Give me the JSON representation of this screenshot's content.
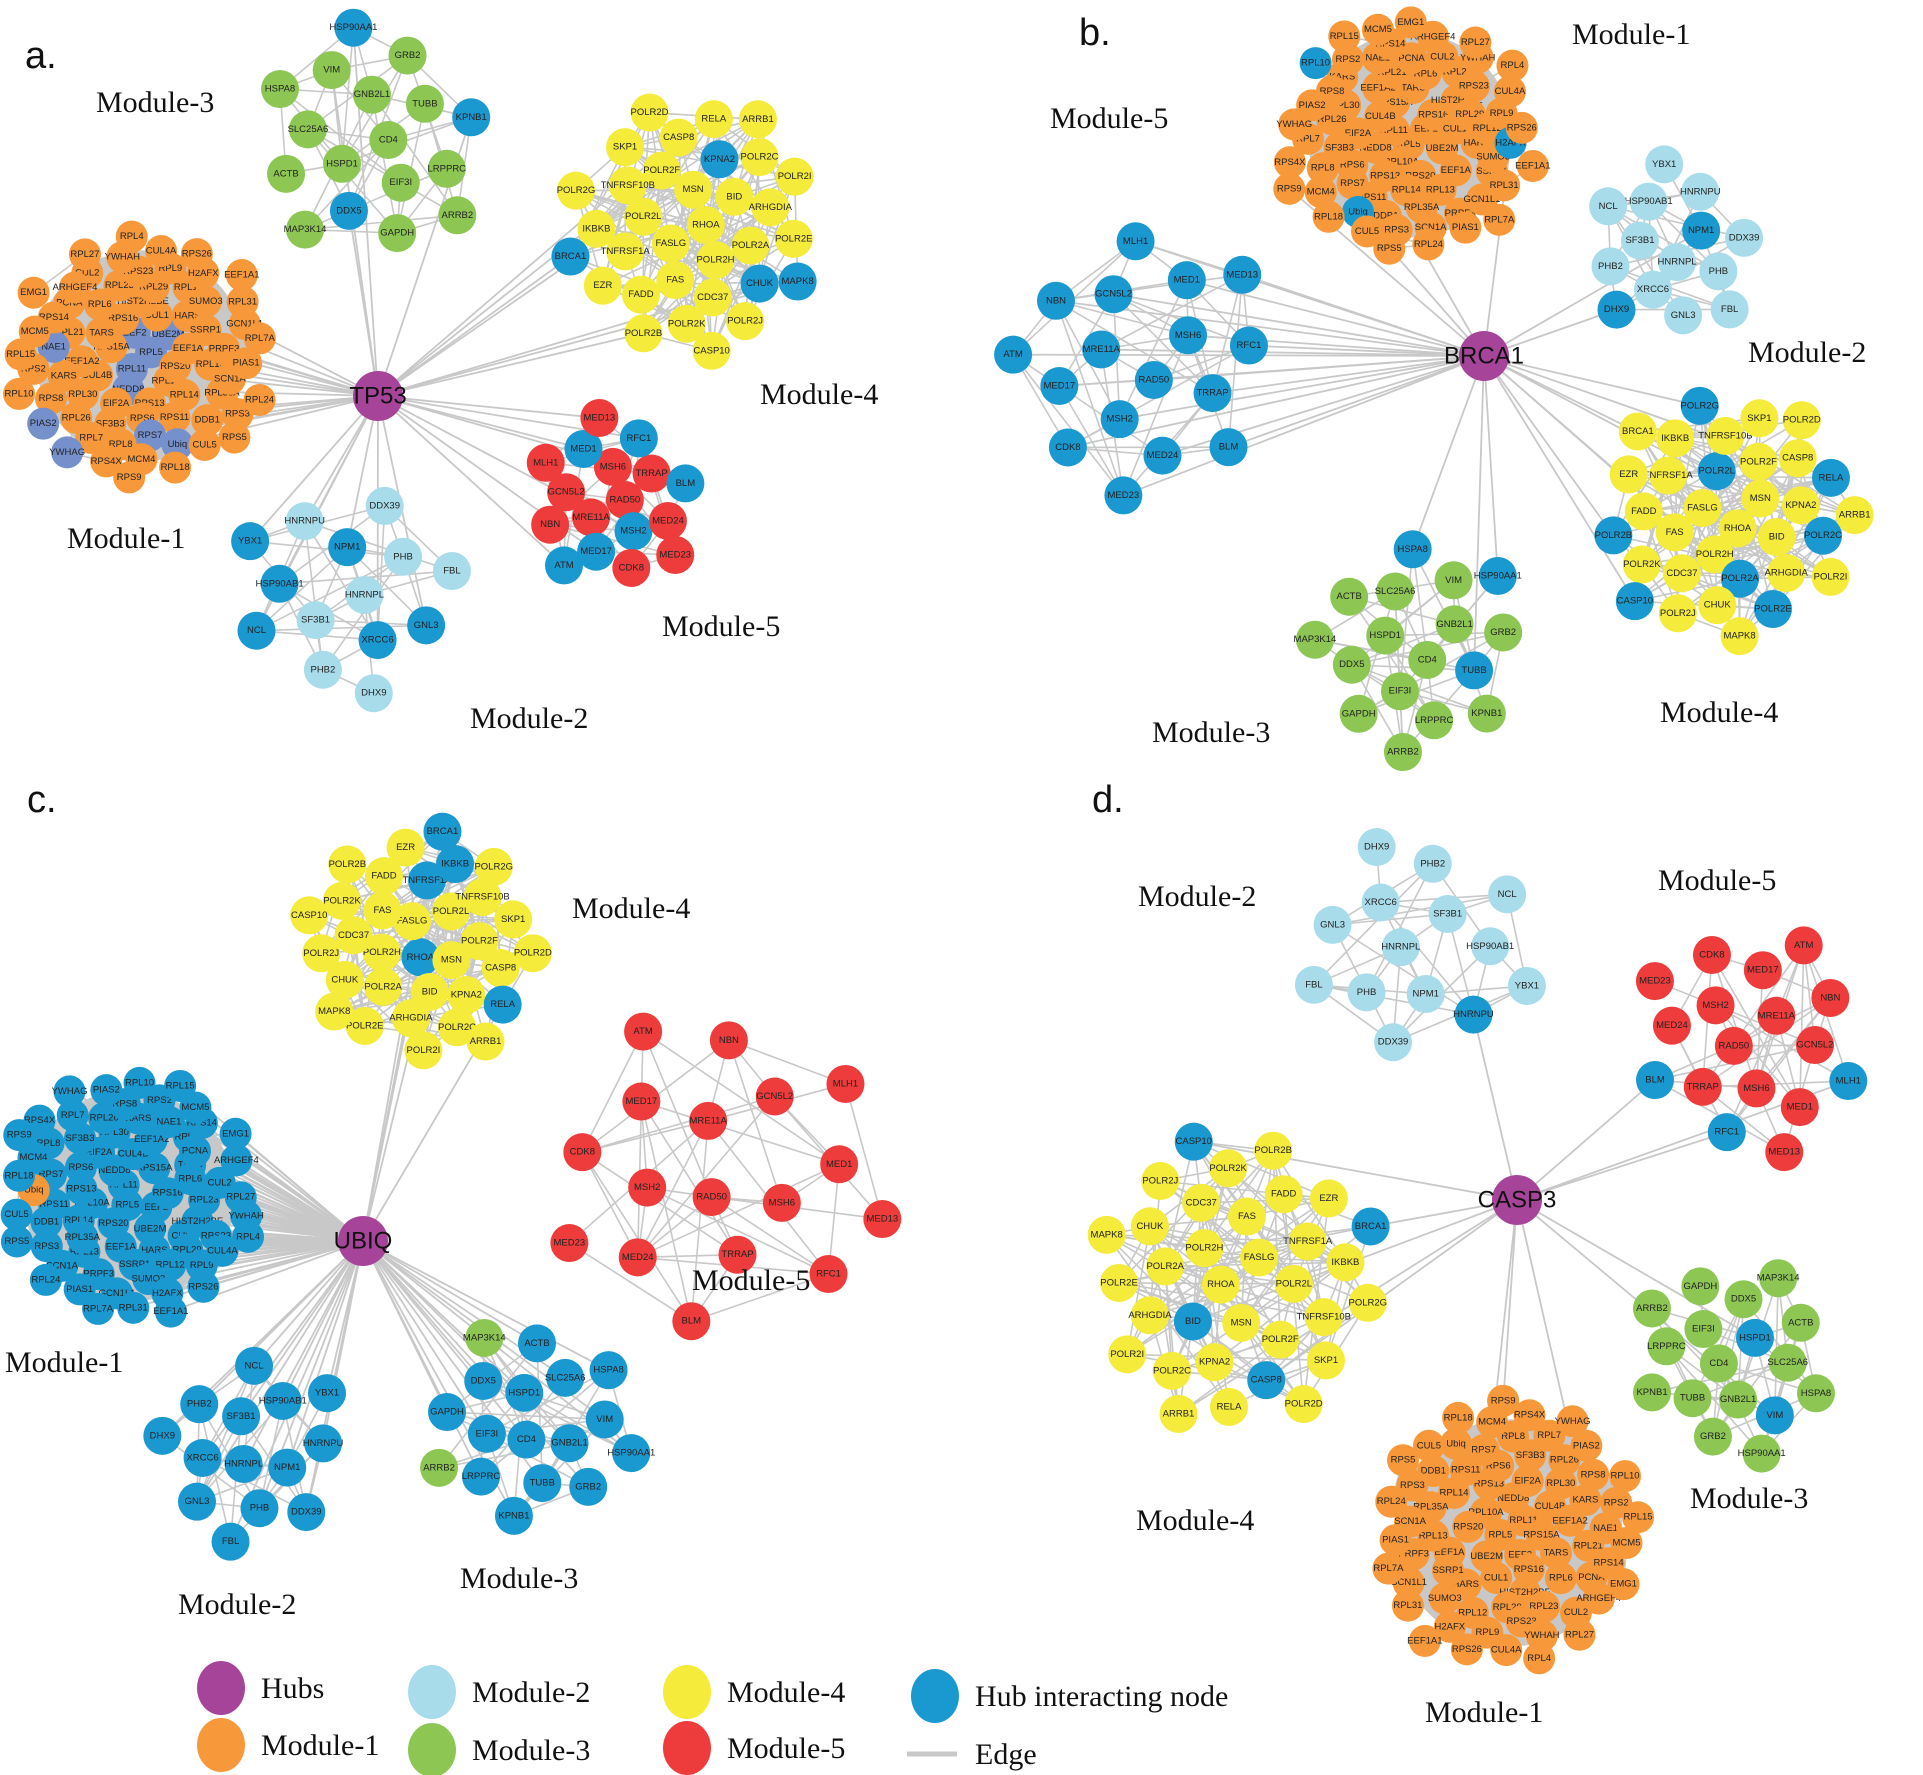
{
  "colors": {
    "hub": "#a6449a",
    "m1": "#f7993a",
    "m2": "#a9dcea",
    "m3": "#8dc653",
    "m4": "#f4eb3a",
    "m5": "#ee3b3b",
    "hub_interacting": "#1a98d0",
    "hub_interacting_alt": "#7690cc",
    "edge": "#c8c8c8"
  },
  "modules": {
    "m1": {
      "label": "Module-1",
      "nodes": [
        "RPL5",
        "RPL11",
        "EEF2",
        "RPL10A",
        "RPS15A",
        "UBE2M",
        "NEDD8",
        "RPS16",
        "RPS20",
        "CUL4B",
        "CUL1",
        "RPS13",
        "TARS",
        "EEF1A",
        "EIF2A",
        "HIST2H2BE",
        "RPL14",
        "EEF1A2",
        "HARS",
        "RPS6",
        "RPL6",
        "RPL13",
        "RPL30",
        "RPL29",
        "RPS11",
        "RPL21",
        "SSRP1",
        "SF3B3",
        "RPL23",
        "RPL35A",
        "KARS",
        "RPL12",
        "RPS7",
        "PCNA",
        "PRPF3",
        "RPL26",
        "RPS23",
        "DDB1",
        "NAE1",
        "SUMO3",
        "RPL8",
        "CUL2",
        "SCN1A",
        "RPS8",
        "RPL9",
        "Ubiq",
        "RPS14",
        "GCN1L1",
        "RPL7",
        "YWHAH",
        "RPS3",
        "RPS2",
        "H2AFX",
        "MCM4",
        "ARHGEF4",
        "PIAS1",
        "PIAS2",
        "CUL4A",
        "CUL5",
        "MCM5",
        "RPL31",
        "RPS4X",
        "RPL27",
        "RPL24",
        "RPL10",
        "RPS26",
        "RPL18",
        "EMG1",
        "RPL7A",
        "YWHAG",
        "RPL4",
        "RPS5",
        "RPL15",
        "EEF1A1",
        "RPS9"
      ]
    },
    "m2": {
      "label": "Module-2",
      "nodes": [
        "HNRNPL",
        "SF3B1",
        "NPM1",
        "XRCC6",
        "HSP90AB1",
        "PHB",
        "PHB2",
        "HNRNPU",
        "GNL3",
        "NCL",
        "DDX39",
        "DHX9",
        "YBX1",
        "FBL"
      ]
    },
    "m3": {
      "label": "Module-3",
      "nodes": [
        "CD4",
        "HSPD1",
        "GNB2L1",
        "EIF3I",
        "SLC25A6",
        "TUBB",
        "DDX5",
        "VIM",
        "LRPPRC",
        "ACTB",
        "GRB2",
        "GAPDH",
        "HSPA8",
        "KPNB1",
        "MAP3K14",
        "HSP90AA1",
        "ARRB2"
      ]
    },
    "m4": {
      "label": "Module-4",
      "nodes": [
        "RHOA",
        "FASLG",
        "MSN",
        "POLR2H",
        "POLR2L",
        "BID",
        "FAS",
        "POLR2F",
        "POLR2A",
        "TNFRSF1A",
        "KPNA2",
        "CDC37",
        "TNFRSF10B",
        "ARHGDIA",
        "FADD",
        "CASP8",
        "CHUK",
        "IKBKB",
        "POLR2C",
        "POLR2K",
        "SKP1",
        "POLR2E",
        "EZR",
        "RELA",
        "POLR2J",
        "POLR2G",
        "POLR2I",
        "POLR2B",
        "POLR2D",
        "MAPK8",
        "BRCA1",
        "ARRB1",
        "CASP10"
      ]
    },
    "m5": {
      "label": "Module-5",
      "nodes": [
        "RAD50",
        "MRE11A",
        "MSH6",
        "MSH2",
        "GCN5L2",
        "TRRAP",
        "MED17",
        "MED1",
        "MED24",
        "NBN",
        "RFC1",
        "CDK8",
        "MLH1",
        "BLM",
        "ATM",
        "MED13",
        "MED23"
      ]
    }
  },
  "panels": [
    {
      "letter": "a.",
      "hub": "TP53",
      "hub_interacting": {
        "m1": {
          "alt_color": true,
          "nodes": [
            "RPL5",
            "RPL11",
            "EEF2",
            "UBE2M",
            "NEDD8",
            "RPS7",
            "NAE1",
            "Ubiq",
            "YWHAG",
            "PIAS2"
          ]
        },
        "m2": {
          "nodes": [
            "XRCC6",
            "NPM1",
            "HSP90AB1",
            "GNL3",
            "NCL",
            "YBX1"
          ]
        },
        "m3": {
          "nodes": [
            "DDX5",
            "KPNB1",
            "HSP90AA1"
          ]
        },
        "m4": {
          "nodes": [
            "KPNA2",
            "CHUK",
            "MAPK8",
            "BRCA1"
          ]
        },
        "m5": {
          "nodes": [
            "MSH2",
            "MED17",
            "MED1",
            "RFC1",
            "BLM",
            "ATM"
          ]
        }
      }
    },
    {
      "letter": "b.",
      "hub": "BRCA1",
      "hub_interacting": {
        "m1": {
          "nodes": [
            "H2AFX",
            "Ubiq",
            "RPL10"
          ]
        },
        "m2": {
          "nodes": [
            "NPM1",
            "DHX9"
          ]
        },
        "m3": {
          "nodes": [
            "TUBB",
            "HSPA8",
            "HSP90AA1"
          ]
        },
        "m4": {
          "nodes": [
            "POLR2A",
            "POLR2C",
            "POLR2B",
            "POLR2L",
            "POLR2E",
            "RELA",
            "POLR2G",
            "CASP10"
          ]
        },
        "m5": {
          "all": true
        }
      }
    },
    {
      "letter": "c.",
      "hub": "UBIQ",
      "hub_interacting": {
        "m1": {
          "all": true,
          "except": [
            "Ubiq"
          ]
        },
        "m2": {
          "all": true
        },
        "m3": {
          "all": true,
          "except": [
            "ARRB2",
            "MAP3K14"
          ]
        },
        "m4": {
          "nodes": [
            "BRCA1",
            "IKBKB",
            "RHOA",
            "TNFRSF1A",
            "RELA"
          ]
        },
        "m5": {
          "nodes": []
        }
      }
    },
    {
      "letter": "d.",
      "hub": "CASP3",
      "hub_interacting": {
        "m1": {
          "nodes": []
        },
        "m2": {
          "nodes": [
            "HNRNPU"
          ]
        },
        "m3": {
          "nodes": [
            "VIM",
            "HSPD1"
          ]
        },
        "m4": {
          "nodes": [
            "BRCA1",
            "CASP10",
            "CASP8",
            "BID"
          ]
        },
        "m5": {
          "nodes": [
            "RFC1",
            "MLH1",
            "BLM"
          ]
        }
      }
    }
  ],
  "legend": [
    {
      "label": "Hubs",
      "color_key": "hub"
    },
    {
      "label": "Module-1",
      "color_key": "m1"
    },
    {
      "label": "Module-2",
      "color_key": "m2"
    },
    {
      "label": "Module-3",
      "color_key": "m3"
    },
    {
      "label": "Module-4",
      "color_key": "m4"
    },
    {
      "label": "Module-5",
      "color_key": "m5"
    },
    {
      "label": "Hub interacting node",
      "color_key": "hub_interacting"
    },
    {
      "label": "Edge",
      "color_key": "edge"
    }
  ]
}
